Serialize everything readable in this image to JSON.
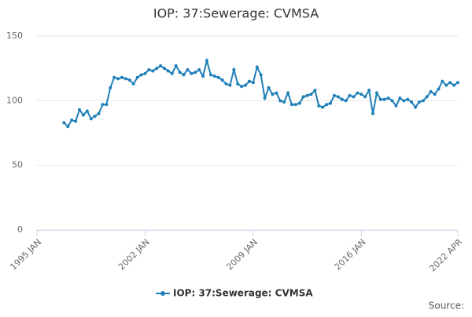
{
  "chart_data": {
    "type": "line",
    "title": "IOP: 37:Sewerage: CVMSA",
    "source": "Source:",
    "x": [
      "1996 OCT",
      "1997 JAN",
      "1997 APR",
      "1997 JUL",
      "1997 OCT",
      "1998 JAN",
      "1998 APR",
      "1998 JUL",
      "1998 OCT",
      "1999 JAN",
      "1999 APR",
      "1999 JUL",
      "1999 OCT",
      "2000 JAN",
      "2000 APR",
      "2000 JUL",
      "2000 OCT",
      "2001 JAN",
      "2001 APR",
      "2001 JUL",
      "2001 OCT",
      "2002 JAN",
      "2002 APR",
      "2002 JUL",
      "2002 OCT",
      "2003 JAN",
      "2003 APR",
      "2003 JUL",
      "2003 OCT",
      "2004 JAN",
      "2004 APR",
      "2004 JUL",
      "2004 OCT",
      "2005 JAN",
      "2005 APR",
      "2005 JUL",
      "2005 OCT",
      "2006 JAN",
      "2006 APR",
      "2006 JUL",
      "2006 OCT",
      "2007 JAN",
      "2007 APR",
      "2007 JUL",
      "2007 OCT",
      "2008 JAN",
      "2008 APR",
      "2008 JUL",
      "2008 OCT",
      "2009 JAN",
      "2009 APR",
      "2009 JUL",
      "2009 OCT",
      "2010 JAN",
      "2010 APR",
      "2010 JUL",
      "2010 OCT",
      "2011 JAN",
      "2011 APR",
      "2011 JUL",
      "2011 OCT",
      "2012 JAN",
      "2012 APR",
      "2012 JUL",
      "2012 OCT",
      "2013 JAN",
      "2013 APR",
      "2013 JUL",
      "2013 OCT",
      "2014 JAN",
      "2014 APR",
      "2014 JUL",
      "2014 OCT",
      "2015 JAN",
      "2015 APR",
      "2015 JUL",
      "2015 OCT",
      "2016 JAN",
      "2016 APR",
      "2016 JUL",
      "2016 OCT",
      "2017 JAN",
      "2017 APR",
      "2017 JUL",
      "2017 OCT",
      "2018 JAN",
      "2018 APR",
      "2018 JUL",
      "2018 OCT",
      "2019 JAN",
      "2019 APR",
      "2019 JUL",
      "2019 OCT",
      "2020 JAN",
      "2020 APR",
      "2020 JUL",
      "2020 OCT",
      "2021 JAN",
      "2021 APR",
      "2021 JUL",
      "2021 OCT",
      "2022 JAN",
      "2022 APR"
    ],
    "series": [
      {
        "name": "IOP: 37:Sewerage: CVMSA",
        "color": "#1f7fb8",
        "values": [
          83,
          80,
          85,
          84,
          93,
          89,
          92,
          86,
          88,
          90,
          97,
          97,
          110,
          118,
          117,
          118,
          117,
          116,
          113,
          118,
          120,
          121,
          124,
          123,
          125,
          127,
          125,
          123,
          121,
          127,
          122,
          120,
          124,
          121,
          122,
          124,
          119,
          131,
          120,
          119,
          118,
          116,
          113,
          112,
          124,
          113,
          111,
          112,
          115,
          114,
          126,
          120,
          102,
          110,
          105,
          106,
          100,
          99,
          106,
          97,
          97,
          98,
          103,
          104,
          105,
          108,
          96,
          95,
          97,
          98,
          104,
          103,
          101,
          100,
          104,
          103,
          106,
          105,
          103,
          108,
          90,
          106,
          101,
          101,
          102,
          100,
          96,
          102,
          100,
          101,
          99,
          95,
          99,
          100,
          103,
          107,
          105,
          109,
          115,
          112,
          114,
          112,
          114
        ]
      }
    ],
    "xlim": [
      "1995 JAN",
      "2022 APR"
    ],
    "xticks": [
      "1995 JAN",
      "2002 JAN",
      "2009 JAN",
      "2016 JAN",
      "2022 APR"
    ],
    "ylim": [
      0,
      150
    ],
    "yticks": [
      0,
      50,
      100,
      150
    ],
    "grid": true
  }
}
